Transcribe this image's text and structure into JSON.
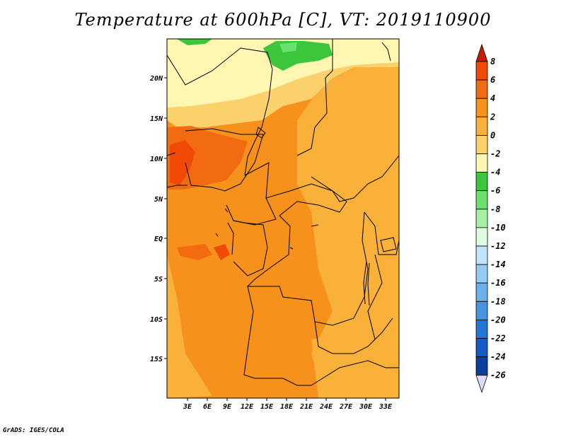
{
  "title": "Temperature at 600hPa [C], VT: 2019110900",
  "credit": "GrADS: IGES/COLA",
  "lat_labels": [
    "20N",
    "15N",
    "10N",
    "5N",
    "EQ",
    "5S",
    "10S",
    "15S"
  ],
  "lon_labels": [
    "3E",
    "6E",
    "9E",
    "12E",
    "15E",
    "18E",
    "21E",
    "24E",
    "27E",
    "30E",
    "33E"
  ],
  "colorbar": {
    "labels": [
      "8",
      "6",
      "4",
      "2",
      "0",
      "-2",
      "-4",
      "-6",
      "-8",
      "-10",
      "-12",
      "-14",
      "-16",
      "-18",
      "-20",
      "-22",
      "-24",
      "-26"
    ],
    "colors": [
      "#d62c00",
      "#f04a06",
      "#f26b11",
      "#f6911b",
      "#f9b13a",
      "#fbd16b",
      "#fef7b2",
      "#3cc63c",
      "#6ce06c",
      "#a6f0a6",
      "#e1fbe1",
      "#bfe4fb",
      "#93cbf4",
      "#6ab1ec",
      "#4693e0",
      "#2577d6",
      "#155dc4",
      "#0b3f9c",
      "#06206b"
    ],
    "top_arrow_color": "#c31c00",
    "bottom_arrow_color": "#dcdcf8"
  },
  "map_colors": {
    "warm": "#f6911b",
    "mid": "#f9b13a",
    "light": "#fbd16b",
    "pale": "#fef7b2",
    "hot": "#f26b11",
    "hottest": "#f04a06",
    "green": "#3cc63c",
    "light_green": "#6ce06c"
  }
}
